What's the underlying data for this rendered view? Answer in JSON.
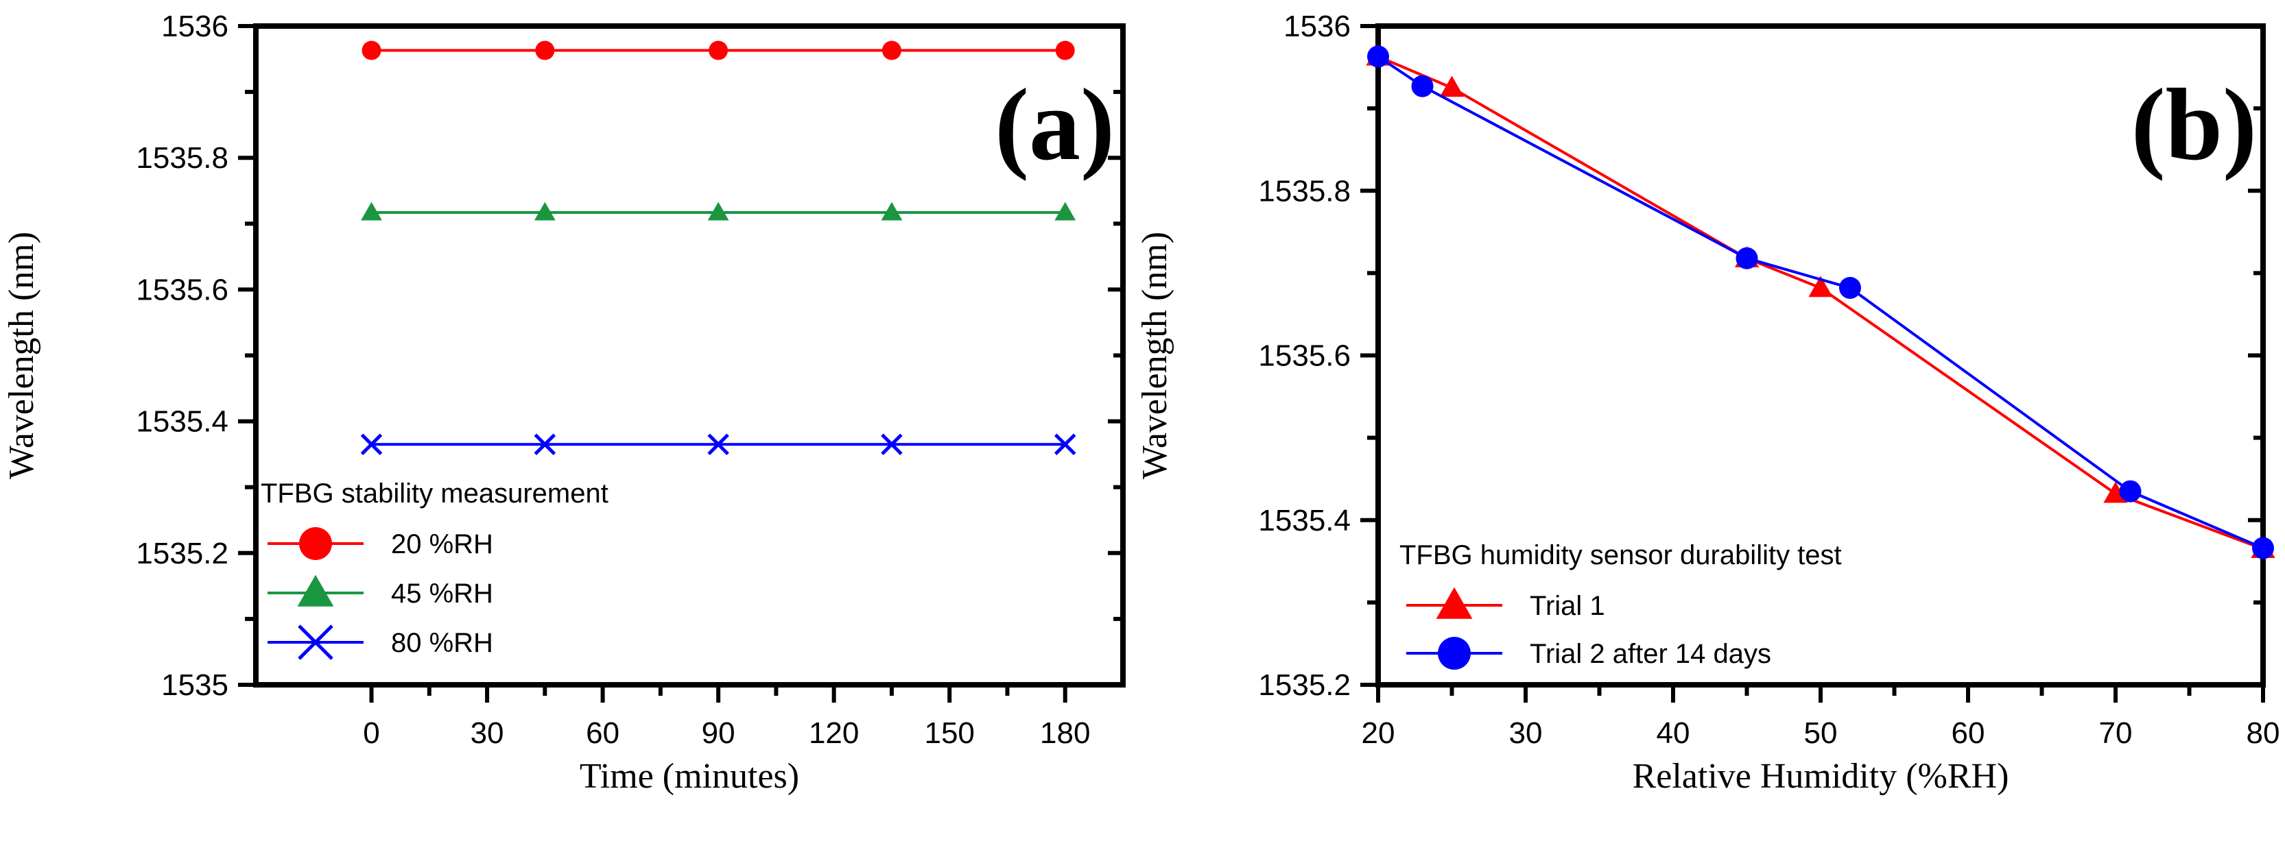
{
  "chart_data": [
    {
      "panel_label": "(a)",
      "type": "line",
      "xlabel": "Time (minutes)",
      "ylabel": "Wavelength (nm)",
      "xlim": [
        -30,
        195
      ],
      "ylim": [
        1535,
        1536
      ],
      "xticks": [
        0,
        30,
        60,
        90,
        120,
        150,
        180
      ],
      "yticks": [
        1535,
        1535.2,
        1535.4,
        1535.6,
        1535.8,
        1536
      ],
      "ytick_labels": [
        "1535",
        "1535.2",
        "1535.4",
        "1535.6",
        "1535.8",
        "1536"
      ],
      "legend_title": "TFBG stability measurement",
      "legend_position": "lower-left",
      "series": [
        {
          "name": "20 %RH",
          "color": "#ff0000",
          "marker": "circle",
          "x": [
            0,
            45,
            90,
            135,
            180
          ],
          "y": [
            1535.963,
            1535.963,
            1535.963,
            1535.963,
            1535.963
          ]
        },
        {
          "name": "45 %RH",
          "color": "#1a9641",
          "marker": "triangle",
          "x": [
            0,
            45,
            90,
            135,
            180
          ],
          "y": [
            1535.717,
            1535.717,
            1535.717,
            1535.717,
            1535.717
          ]
        },
        {
          "name": "80 %RH",
          "color": "#0000ff",
          "marker": "x",
          "x": [
            0,
            45,
            90,
            135,
            180
          ],
          "y": [
            1535.365,
            1535.365,
            1535.365,
            1535.365,
            1535.365
          ]
        }
      ]
    },
    {
      "panel_label": "(b)",
      "type": "line",
      "xlabel": "Relative Humidity (%RH)",
      "ylabel": "Wavelength (nm)",
      "xlim": [
        20,
        80
      ],
      "ylim": [
        1535.2,
        1536
      ],
      "xticks": [
        20,
        30,
        40,
        50,
        60,
        70,
        80
      ],
      "yticks": [
        1535.2,
        1535.4,
        1535.6,
        1535.8,
        1536
      ],
      "ytick_labels": [
        "1535.2",
        "1535.4",
        "1535.6",
        "1535.8",
        "1536"
      ],
      "legend_title": "TFBG humidity sensor durability test",
      "legend_position": "lower-left",
      "series": [
        {
          "name": "Trial 1",
          "color": "#ff0000",
          "marker": "triangle",
          "x": [
            20,
            25,
            45,
            50,
            70,
            80
          ],
          "y": [
            1535.963,
            1535.925,
            1535.718,
            1535.682,
            1535.432,
            1535.365
          ]
        },
        {
          "name": "Trial 2 after 14 days",
          "color": "#0000ff",
          "marker": "circle",
          "x": [
            20,
            23,
            45,
            52,
            71,
            80
          ],
          "y": [
            1535.963,
            1535.927,
            1535.718,
            1535.682,
            1535.435,
            1535.366
          ]
        }
      ]
    }
  ]
}
